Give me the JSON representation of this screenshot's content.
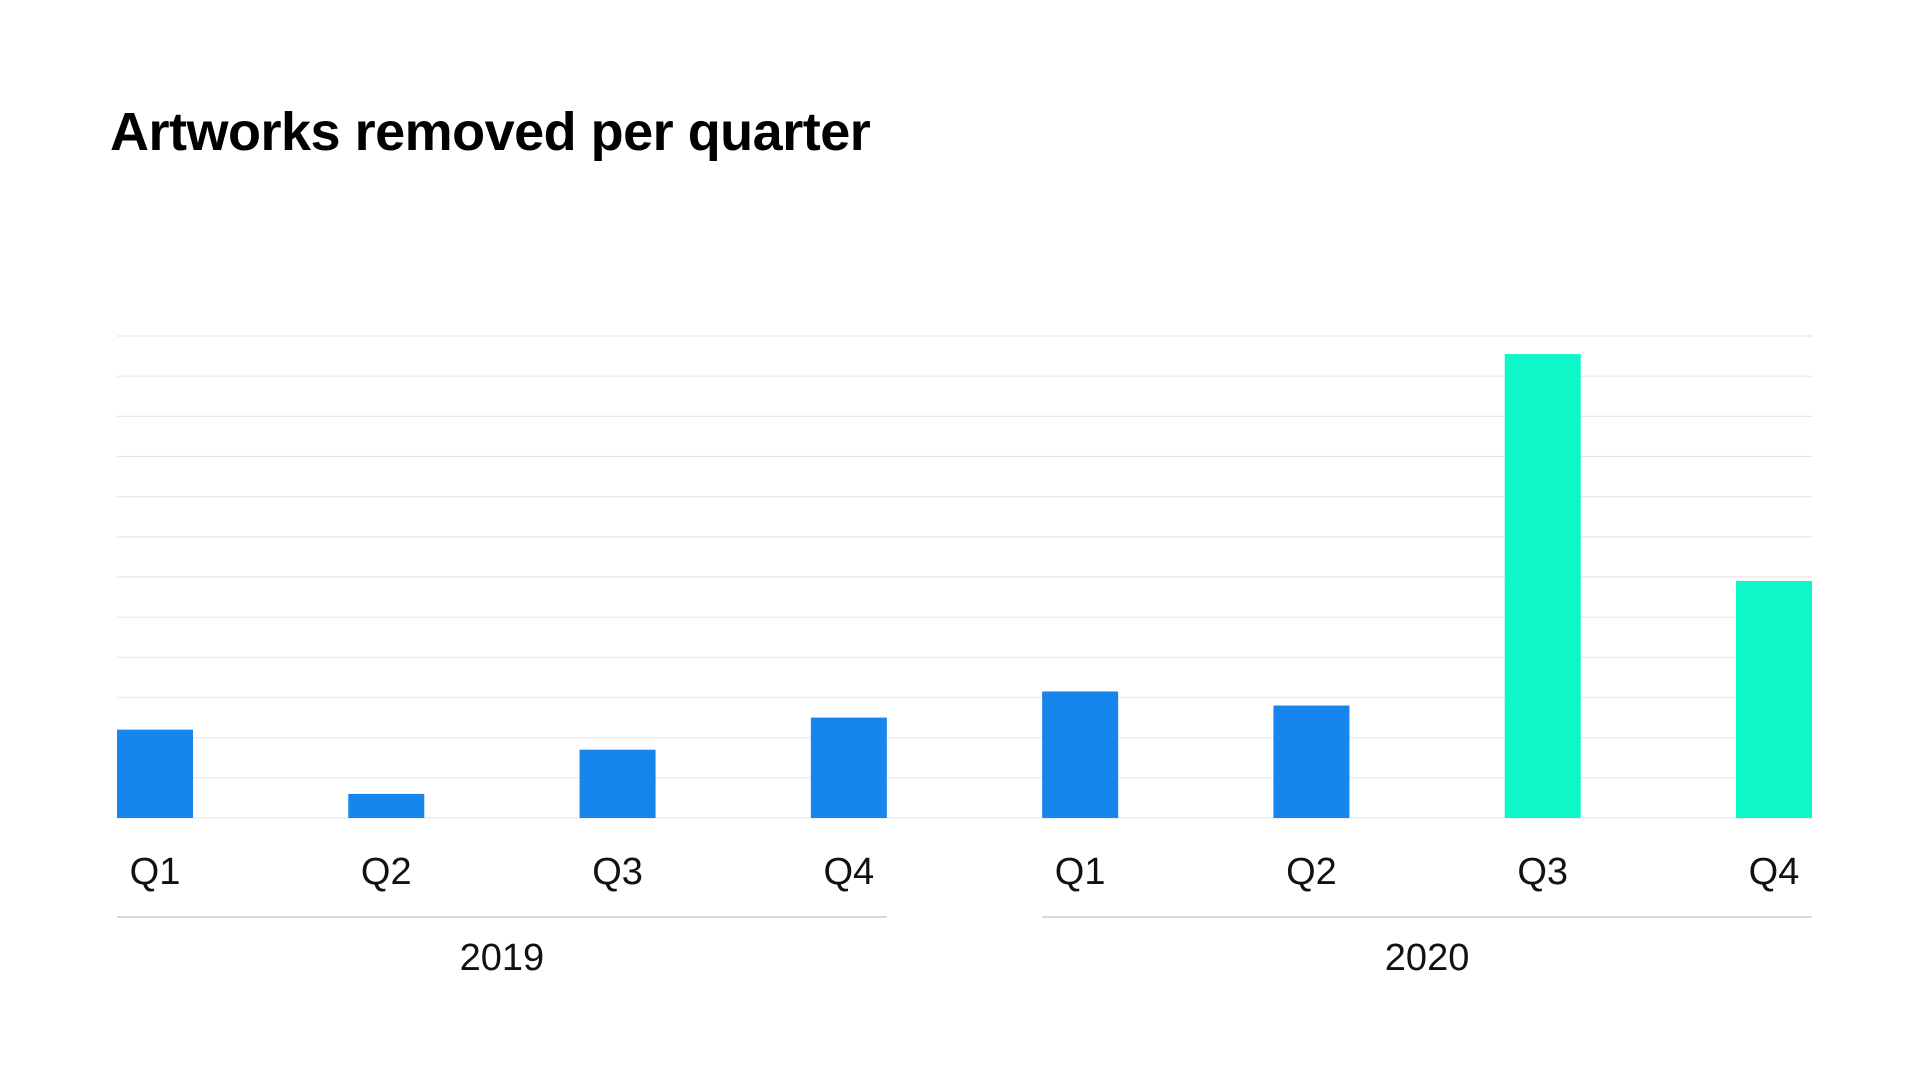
{
  "title": "Artworks removed per quarter",
  "colors": {
    "normal": "#1685EC",
    "highlight": "#0DF7C8",
    "gridline": "#E7E7E7",
    "separator": "#C9CED6"
  },
  "chart_data": {
    "type": "bar",
    "title": "Artworks removed per quarter",
    "xlabel": "",
    "ylabel": "",
    "grid": true,
    "legend": "none",
    "ylim": [
      0,
      12
    ],
    "categories": [
      "Q1",
      "Q2",
      "Q3",
      "Q4",
      "Q1",
      "Q2",
      "Q3",
      "Q4"
    ],
    "groups": [
      {
        "label": "2019",
        "categories": [
          "Q1",
          "Q2",
          "Q3",
          "Q4"
        ]
      },
      {
        "label": "2020",
        "categories": [
          "Q1",
          "Q2",
          "Q3",
          "Q4"
        ]
      }
    ],
    "values": [
      2.2,
      0.6,
      1.7,
      2.5,
      3.15,
      2.8,
      11.55,
      5.9
    ],
    "highlighted": [
      false,
      false,
      false,
      false,
      false,
      false,
      true,
      true
    ]
  }
}
